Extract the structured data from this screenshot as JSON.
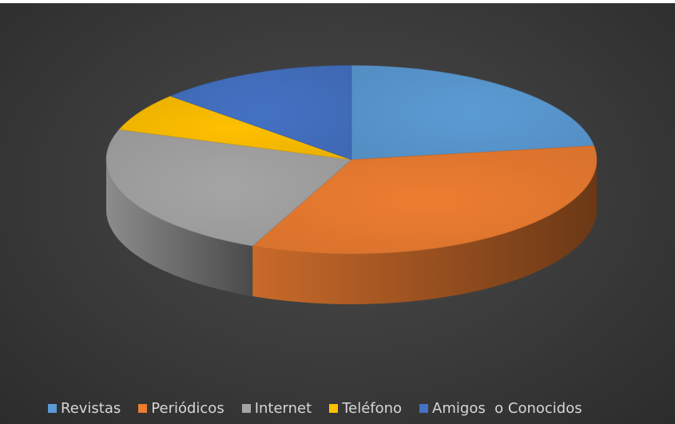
{
  "chart_data": {
    "type": "pie",
    "style": "3d",
    "title": "",
    "slices": [
      {
        "label": "Revistas",
        "value": 24,
        "color": "#5b9bd5"
      },
      {
        "label": "Periódicos",
        "value": 36,
        "color": "#ed7d31"
      },
      {
        "label": "Internet",
        "value": 25,
        "color": "#a5a5a5"
      },
      {
        "label": "Teléfono",
        "value": 7,
        "color": "#ffc000"
      },
      {
        "label": "Amigos  o Conocidos",
        "value": 14,
        "color": "#4472c4"
      }
    ],
    "legend_position": "bottom",
    "background": "#3a3a3a"
  }
}
